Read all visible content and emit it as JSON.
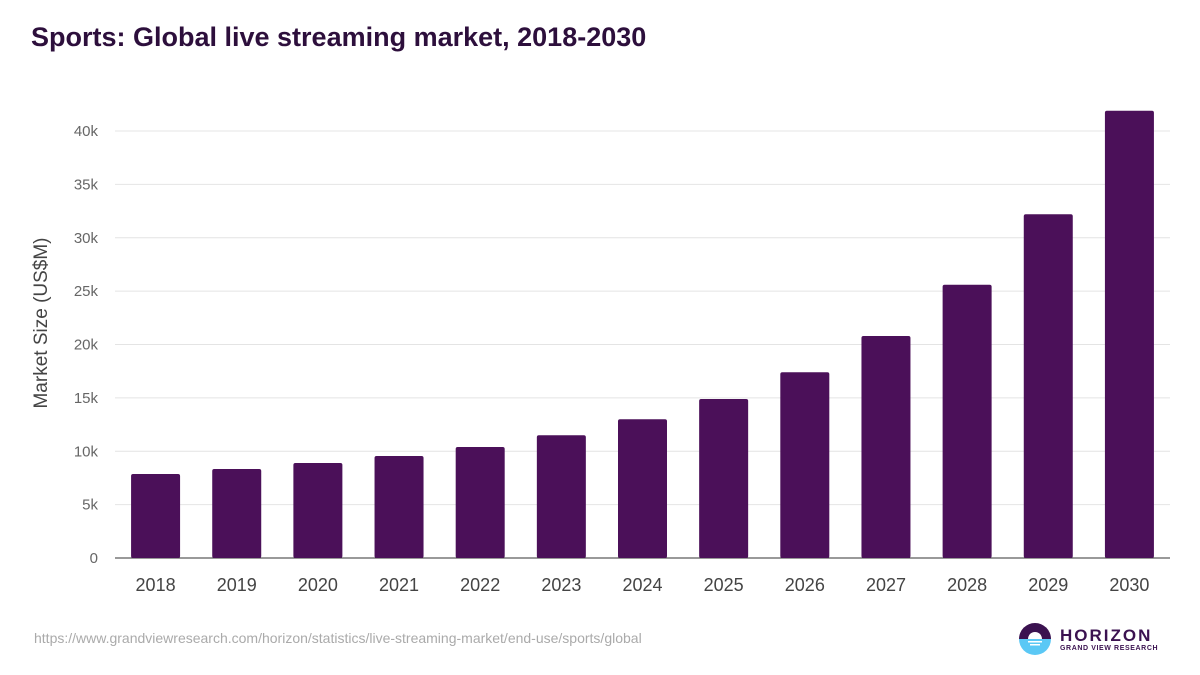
{
  "chart_data": {
    "type": "bar",
    "title": "Sports: Global live streaming market, 2018-2030",
    "xlabel": "",
    "ylabel": "Market Size (US$M)",
    "categories": [
      "2018",
      "2019",
      "2020",
      "2021",
      "2022",
      "2023",
      "2024",
      "2025",
      "2026",
      "2027",
      "2028",
      "2029",
      "2030"
    ],
    "values": [
      7870,
      8340,
      8900,
      9550,
      10400,
      11500,
      13000,
      14900,
      17400,
      20800,
      25600,
      32200,
      41900
    ],
    "ylim": [
      0,
      40000
    ],
    "yticks": [
      0,
      5000,
      10000,
      15000,
      20000,
      25000,
      30000,
      35000,
      40000
    ],
    "ytick_labels": [
      "0",
      "5k",
      "10k",
      "15k",
      "20k",
      "25k",
      "30k",
      "35k",
      "40k"
    ],
    "grid": true,
    "bar_color": "#4b1059"
  },
  "source_url": "https://www.grandviewresearch.com/horizon/statistics/live-streaming-market/end-use/sports/global",
  "logo": {
    "name": "HORIZON",
    "sub": "GRAND VIEW RESEARCH"
  }
}
